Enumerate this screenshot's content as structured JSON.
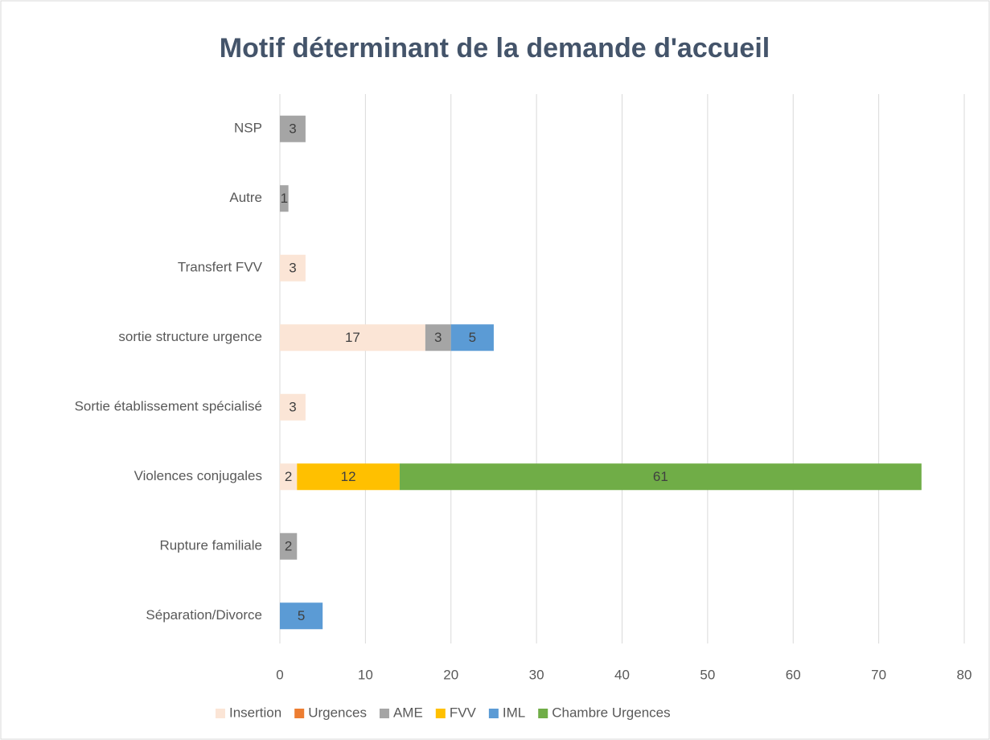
{
  "chart_data": {
    "type": "stacked_barh",
    "title": "Motif déterminant de la demande d'accueil",
    "categories": [
      "NSP",
      "Autre",
      "Transfert FVV",
      "sortie structure urgence",
      "Sortie établissement spécialisé",
      "Violences conjugales",
      "Rupture familiale",
      "Séparation/Divorce"
    ],
    "series": [
      {
        "name": "Insertion",
        "color": "#fbe5d6",
        "values": [
          null,
          null,
          3,
          17,
          3,
          2,
          null,
          null
        ]
      },
      {
        "name": "Urgences",
        "color": "#ed7d31",
        "values": [
          null,
          null,
          null,
          null,
          null,
          null,
          null,
          null
        ]
      },
      {
        "name": "AME",
        "color": "#a5a5a5",
        "values": [
          3,
          1,
          null,
          3,
          null,
          null,
          2,
          null
        ]
      },
      {
        "name": "FVV",
        "color": "#ffc000",
        "values": [
          null,
          null,
          null,
          null,
          null,
          12,
          null,
          null
        ]
      },
      {
        "name": "IML",
        "color": "#5b9bd5",
        "values": [
          null,
          null,
          null,
          5,
          null,
          null,
          null,
          5
        ]
      },
      {
        "name": "Chambre Urgences",
        "color": "#70ad47",
        "values": [
          null,
          null,
          null,
          null,
          null,
          61,
          null,
          null
        ]
      }
    ],
    "xlim": [
      0,
      80
    ],
    "xticks": [
      0,
      10,
      20,
      30,
      40,
      50,
      60,
      70,
      80
    ],
    "grid": true,
    "legend": "bottom"
  }
}
